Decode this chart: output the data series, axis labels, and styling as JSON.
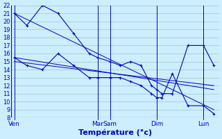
{
  "title": "Température (°c)",
  "background_color": "#cceeff",
  "plot_bg": "#cceeff",
  "line_color": "#0000cc",
  "grid_color": "#aacccc",
  "ylim": [
    8,
    22
  ],
  "yticks": [
    8,
    9,
    10,
    11,
    12,
    13,
    14,
    15,
    16,
    17,
    18,
    19,
    20,
    21,
    22
  ],
  "xlim": [
    0,
    20
  ],
  "day_labels": [
    "Ven",
    "Mar",
    "Sam",
    "Dim",
    "Lun"
  ],
  "day_x_positions": [
    0.3,
    8.3,
    9.5,
    14.0,
    18.5
  ],
  "vlines_x": [
    0.3,
    8.3,
    9.5,
    14.0,
    18.5
  ],
  "series_upper": {
    "x": [
      0.3,
      1.5,
      3.0,
      4.5,
      6.0,
      7.5,
      8.3,
      9.5,
      10.5,
      11.5,
      12.5,
      13.5,
      14.0,
      14.5,
      15.5,
      17.0,
      18.5,
      19.5
    ],
    "y": [
      21,
      19.5,
      22,
      21,
      18.5,
      16,
      15.5,
      15,
      14.5,
      15,
      14.5,
      12,
      11.5,
      11,
      11,
      17,
      17,
      14.5
    ]
  },
  "series_lower": {
    "x": [
      0.3,
      1.5,
      3.0,
      4.5,
      6.0,
      7.5,
      8.3,
      9.5,
      10.5,
      11.5,
      12.5,
      13.5,
      14.0,
      14.5,
      15.5,
      17.0,
      18.5,
      19.5
    ],
    "y": [
      15.5,
      14.5,
      14,
      16,
      14.5,
      13,
      13,
      13,
      13,
      12.5,
      12,
      11,
      10.5,
      10.5,
      13.5,
      9.5,
      9.5,
      8.5
    ]
  },
  "trend1": {
    "x": [
      0.3,
      19.5
    ],
    "y": [
      21,
      9
    ]
  },
  "trend2": {
    "x": [
      0.3,
      19.5
    ],
    "y": [
      15.5,
      11.5
    ]
  },
  "trend3": {
    "x": [
      0.3,
      19.5
    ],
    "y": [
      15,
      12
    ]
  }
}
